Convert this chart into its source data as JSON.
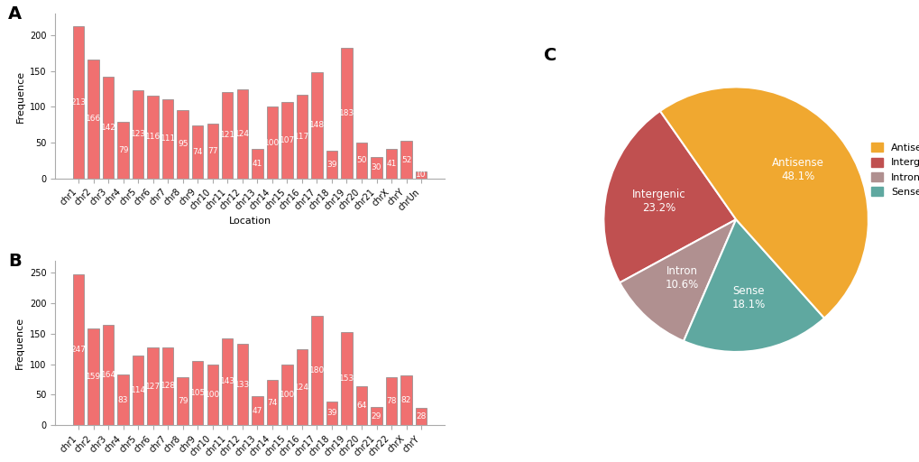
{
  "A_categories": [
    "chr1",
    "chr2",
    "chr3",
    "chr4",
    "chr5",
    "chr6",
    "chr7",
    "chr8",
    "chr9",
    "chr10",
    "chr11",
    "chr12",
    "chr13",
    "chr14",
    "chr15",
    "chr16",
    "chr17",
    "chr18",
    "chr19",
    "chr20",
    "chr21",
    "chrX",
    "chrY",
    "chrUn"
  ],
  "A_values": [
    213,
    166,
    142,
    79,
    123,
    116,
    111,
    95,
    74,
    77,
    121,
    124,
    41,
    100,
    107,
    117,
    148,
    39,
    183,
    50,
    30,
    41,
    52,
    10
  ],
  "B_categories": [
    "chr1",
    "chr2",
    "chr3",
    "chr4",
    "chr5",
    "chr6",
    "chr7",
    "chr8",
    "chr9",
    "chr10",
    "chr11",
    "chr12",
    "chr13",
    "chr14",
    "chr15",
    "chr16",
    "chr17",
    "chr18",
    "chr19",
    "chr20",
    "chr21",
    "chr22",
    "chrX",
    "chrY"
  ],
  "B_values": [
    247,
    159,
    164,
    83,
    114,
    127,
    128,
    79,
    105,
    100,
    143,
    133,
    47,
    74,
    100,
    124,
    180,
    39,
    153,
    64,
    29,
    78,
    82,
    28
  ],
  "bar_color": "#F07070",
  "bar_edgecolor": "#888888",
  "ylabel": "Frequence",
  "xlabel": "Location",
  "pie_labels": [
    "Intergenic\n23.2%",
    "Intron\n10.6%",
    "Sense\n18.1%",
    "Antisense\n48.1%"
  ],
  "pie_values": [
    23.2,
    10.6,
    18.1,
    48.1
  ],
  "pie_colors": [
    "#C05050",
    "#B09090",
    "#5FA8A0",
    "#F0A830"
  ],
  "legend_labels": [
    "Antisense",
    "Intergenic",
    "Intron",
    "Sense"
  ],
  "legend_colors": [
    "#F0A830",
    "#C05050",
    "#B09090",
    "#5FA8A0"
  ],
  "panel_label_fontsize": 14,
  "bar_value_fontsize": 6.5,
  "axis_fontsize": 8,
  "tick_fontsize": 7
}
